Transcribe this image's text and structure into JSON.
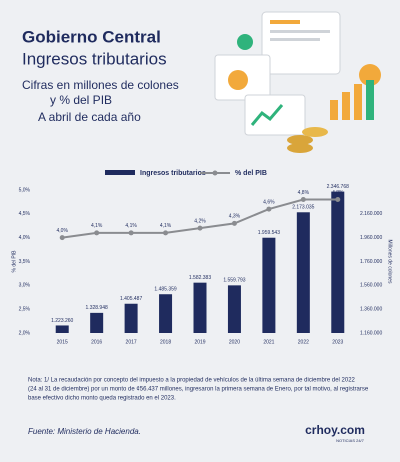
{
  "header": {
    "title": "Gobierno Central",
    "subtitle": "Ingresos tributarios",
    "lines": [
      "Cifras en millones de colones",
      "y % del PIB",
      "A abril de cada año"
    ]
  },
  "chart_data": {
    "type": "bar_line",
    "categories": [
      "2015",
      "2016",
      "2017",
      "2018",
      "2019",
      "2020",
      "2021",
      "2022",
      "2023"
    ],
    "series": [
      {
        "name": "Ingresos tributarios",
        "type": "bar",
        "axis": "y2",
        "color": "#1f2b5e",
        "values": [
          1223260,
          1328948,
          1405487,
          1485359,
          1582383,
          1559793,
          1959543,
          2173035,
          2346768
        ],
        "value_labels": [
          "1.223.260",
          "1.328.948",
          "1.405.487",
          "1.485.359",
          "1.582.383",
          "1.559.793",
          "1.959.543",
          "2.173.035",
          "2.346.768"
        ]
      },
      {
        "name": "% del PIB",
        "type": "line",
        "color": "#8a8c90",
        "values": [
          4.0,
          4.1,
          4.1,
          4.1,
          4.2,
          4.3,
          4.6,
          4.8,
          4.8
        ],
        "value_labels": [
          "4,0%",
          "4,1%",
          "4,1%",
          "4,1%",
          "4,2%",
          "4,3%",
          "4,6%",
          "4,8%",
          "4,8%"
        ]
      }
    ],
    "y_label": "% del PIB",
    "y2_label": "Millones de colones",
    "ylim": [
      2,
      5
    ],
    "yticks": [
      {
        "value": 2,
        "label": "2,0%"
      },
      {
        "value": 2.5,
        "label": "2,5%"
      },
      {
        "value": 3,
        "label": "3,0%"
      },
      {
        "value": 3.5,
        "label": "3,5%"
      },
      {
        "value": 4,
        "label": "4,0%"
      },
      {
        "value": 4.5,
        "label": "4,5%"
      },
      {
        "value": 5,
        "label": "5,0%"
      }
    ],
    "y2lim": [
      1160000,
      2360000
    ],
    "y2ticks": [
      {
        "value": 1160000,
        "label": "1.160.000"
      },
      {
        "value": 1360000,
        "label": "1.360.000"
      },
      {
        "value": 1560000,
        "label": "1.560.000"
      },
      {
        "value": 1760000,
        "label": "1.760.000"
      },
      {
        "value": 1960000,
        "label": "1.960.000"
      },
      {
        "value": 2160000,
        "label": "2.160.000"
      }
    ]
  },
  "footer": {
    "note": [
      "Nota: 1/ La recaudación por concepto del impuesto a la propiedad de vehículos de la última semana de diciembre del 2022",
      "(24 al 31 de diciembre) por un monto de ¢56.437 millones, ingresaron la primera semana de Enero, por tal motivo, al registrarse",
      "base efectivo dicho monto queda registrado en el 2023."
    ],
    "source": "Fuente: Ministerio de Hacienda.",
    "logo": "crhoy.com",
    "logo_tag": "NOTICIAS 24/7"
  }
}
